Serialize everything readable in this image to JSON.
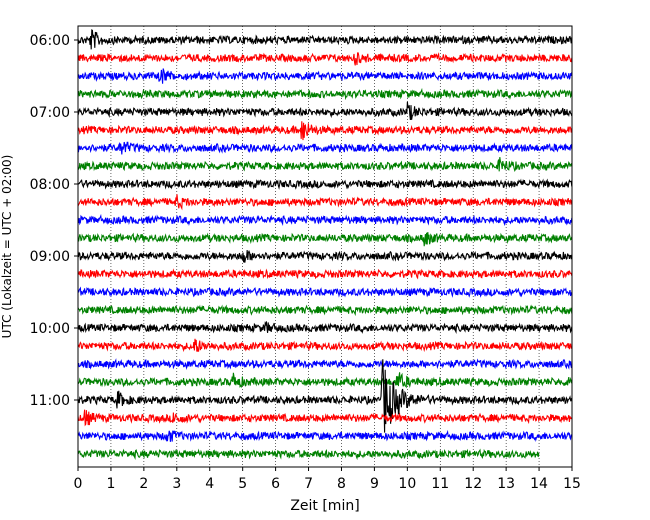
{
  "chart_data": {
    "type": "line",
    "title": "",
    "xlabel": "Zeit  [min]",
    "ylabel": "UTC (Lokalzeit = UTC + 02:00)",
    "xlim": [
      0,
      15
    ],
    "x_ticks": [
      "0",
      "1",
      "2",
      "3",
      "4",
      "5",
      "6",
      "7",
      "8",
      "9",
      "10",
      "11",
      "12",
      "13",
      "14",
      "15"
    ],
    "y_ticks": [
      {
        "label": "06:00",
        "row": 0
      },
      {
        "label": "07:00",
        "row": 4
      },
      {
        "label": "08:00",
        "row": 8
      },
      {
        "label": "09:00",
        "row": 12
      },
      {
        "label": "10:00",
        "row": 16
      },
      {
        "label": "11:00",
        "row": 20
      }
    ],
    "grid": "vertical-dotted",
    "legend": "none",
    "series_colors": [
      "#000000",
      "#ff0000",
      "#0000ff",
      "#008000"
    ],
    "traces": [
      {
        "start": "06:00",
        "end_min": 15,
        "color": "#000000",
        "events": [
          {
            "t": 0.4,
            "amp": 10
          }
        ]
      },
      {
        "start": "06:15",
        "end_min": 15,
        "color": "#ff0000",
        "events": [
          {
            "t": 8.4,
            "amp": 5
          }
        ]
      },
      {
        "start": "06:30",
        "end_min": 15,
        "color": "#0000ff",
        "events": [
          {
            "t": 2.5,
            "amp": 8
          }
        ]
      },
      {
        "start": "06:45",
        "end_min": 15,
        "color": "#008000",
        "events": []
      },
      {
        "start": "07:00",
        "end_min": 15,
        "color": "#000000",
        "events": [
          {
            "t": 10.0,
            "amp": 8
          }
        ]
      },
      {
        "start": "07:15",
        "end_min": 15,
        "color": "#ff0000",
        "events": [
          {
            "t": 6.8,
            "amp": 12
          }
        ]
      },
      {
        "start": "07:30",
        "end_min": 15,
        "color": "#0000ff",
        "events": [
          {
            "t": 1.3,
            "amp": 7
          }
        ]
      },
      {
        "start": "07:45",
        "end_min": 15,
        "color": "#008000",
        "events": [
          {
            "t": 12.8,
            "amp": 7
          }
        ]
      },
      {
        "start": "08:00",
        "end_min": 15,
        "color": "#000000",
        "events": []
      },
      {
        "start": "08:15",
        "end_min": 15,
        "color": "#ff0000",
        "events": [
          {
            "t": 3.0,
            "amp": 5
          }
        ]
      },
      {
        "start": "08:30",
        "end_min": 15,
        "color": "#0000ff",
        "events": []
      },
      {
        "start": "08:45",
        "end_min": 15,
        "color": "#008000",
        "events": [
          {
            "t": 10.5,
            "amp": 7
          }
        ]
      },
      {
        "start": "09:00",
        "end_min": 15,
        "color": "#000000",
        "events": [
          {
            "t": 5.0,
            "amp": 6
          }
        ]
      },
      {
        "start": "09:15",
        "end_min": 15,
        "color": "#ff0000",
        "events": []
      },
      {
        "start": "09:30",
        "end_min": 15,
        "color": "#0000ff",
        "events": []
      },
      {
        "start": "09:45",
        "end_min": 15,
        "color": "#008000",
        "events": []
      },
      {
        "start": "10:00",
        "end_min": 15,
        "color": "#000000",
        "events": [
          {
            "t": 5.7,
            "amp": 4
          }
        ]
      },
      {
        "start": "10:15",
        "end_min": 15,
        "color": "#ff0000",
        "events": [
          {
            "t": 3.5,
            "amp": 8
          }
        ]
      },
      {
        "start": "10:30",
        "end_min": 15,
        "color": "#0000ff",
        "events": []
      },
      {
        "start": "10:45",
        "end_min": 15,
        "color": "#008000",
        "events": [
          {
            "t": 4.7,
            "amp": 7
          },
          {
            "t": 9.7,
            "amp": 9
          },
          {
            "t": 14.9,
            "amp": 9
          }
        ]
      },
      {
        "start": "11:00",
        "end_min": 15,
        "color": "#000000",
        "events": [
          {
            "t": 1.2,
            "amp": 7
          },
          {
            "t": 9.25,
            "amp": 40
          }
        ]
      },
      {
        "start": "11:15",
        "end_min": 15,
        "color": "#ff0000",
        "events": [
          {
            "t": 0.2,
            "amp": 7
          },
          {
            "t": 2.9,
            "amp": 5
          }
        ]
      },
      {
        "start": "11:30",
        "end_min": 15,
        "color": "#0000ff",
        "events": [
          {
            "t": 2.7,
            "amp": 6
          }
        ]
      },
      {
        "start": "11:45",
        "end_min": 14,
        "color": "#008000",
        "events": []
      }
    ]
  }
}
